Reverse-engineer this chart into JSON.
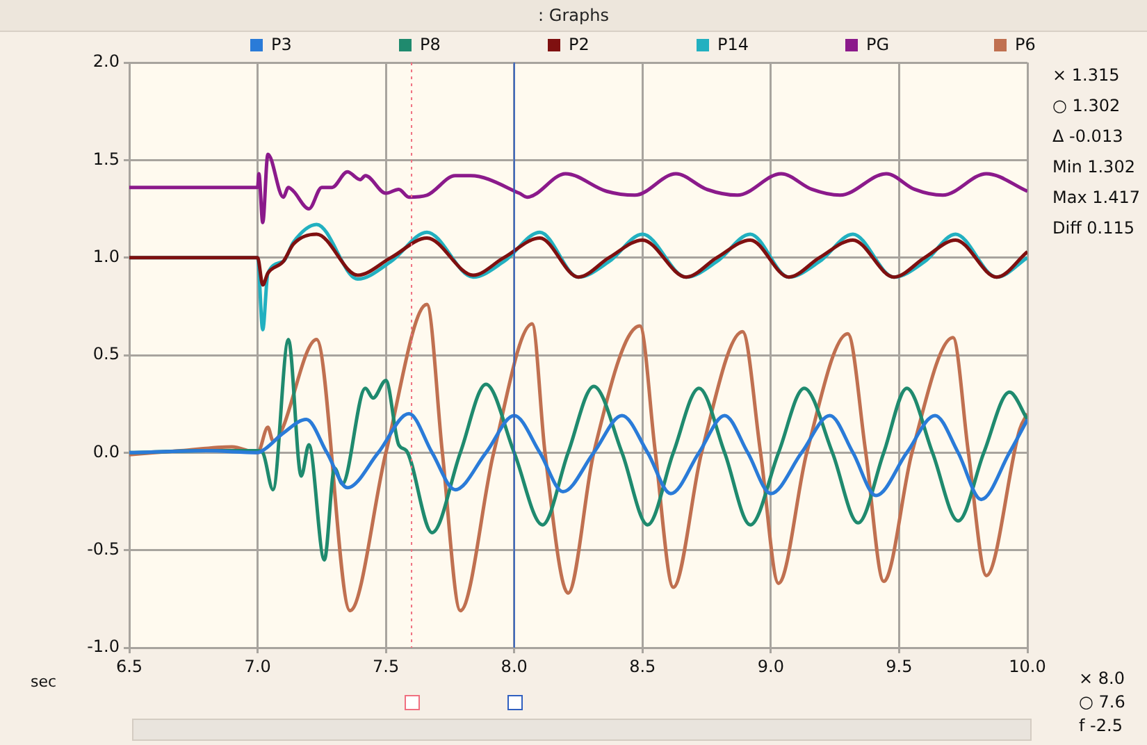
{
  "chart_data": {
    "type": "line",
    "title": ": Graphs",
    "xlabel": "sec",
    "xlim": [
      6.5,
      10.0
    ],
    "xticks": [
      {
        "value": 6.5,
        "label": "6.5"
      },
      {
        "value": 7,
        "label": "7.0"
      },
      {
        "value": 7.5,
        "label": "7.5"
      },
      {
        "value": 8,
        "label": "8.0"
      },
      {
        "value": 8.5,
        "label": "8.5"
      },
      {
        "value": 9,
        "label": "9.0"
      },
      {
        "value": 9.5,
        "label": "9.5"
      },
      {
        "value": 10,
        "label": "10.0"
      }
    ],
    "ylim": [
      -1.0,
      2.0
    ],
    "yticks": [
      {
        "value": -1,
        "label": "-1.0"
      },
      {
        "value": -0.5,
        "label": "-0.5"
      },
      {
        "value": 0,
        "label": "0.0"
      },
      {
        "value": 0.5,
        "label": "0.5"
      },
      {
        "value": 1,
        "label": "1.0"
      },
      {
        "value": 1.5,
        "label": "1.5"
      },
      {
        "value": 2,
        "label": "2.0"
      }
    ],
    "grid": true,
    "legend": "top",
    "marker": "none",
    "line_style": "solid",
    "series": [
      {
        "name": "P3",
        "color": "#2a7bd8",
        "x": [
          6.5,
          6.8,
          7.0,
          7.03,
          7.1,
          7.19,
          7.27,
          7.35,
          7.47,
          7.59,
          7.68,
          7.77,
          7.89,
          8.0,
          8.1,
          8.19,
          8.31,
          8.42,
          8.52,
          8.61,
          8.72,
          8.82,
          8.91,
          9.0,
          9.12,
          9.23,
          9.32,
          9.41,
          9.53,
          9.64,
          9.73,
          9.82,
          9.93,
          10.0
        ],
        "values": [
          0,
          0.01,
          0,
          0.02,
          0.1,
          0.17,
          0,
          -0.18,
          0,
          0.2,
          0,
          -0.19,
          0,
          0.19,
          0,
          -0.2,
          0,
          0.19,
          0,
          -0.21,
          0,
          0.19,
          0,
          -0.21,
          0,
          0.19,
          0,
          -0.22,
          0,
          0.19,
          0,
          -0.24,
          0,
          0.17
        ]
      },
      {
        "name": "P8",
        "color": "#1f8a6e",
        "x": [
          6.5,
          6.8,
          7.0,
          7.02,
          7.06,
          7.12,
          7.17,
          7.2,
          7.26,
          7.3,
          7.33,
          7.42,
          7.45,
          7.5,
          7.55,
          7.58,
          7.68,
          7.79,
          7.89,
          8.0,
          8.11,
          8.21,
          8.31,
          8.42,
          8.52,
          8.62,
          8.72,
          8.82,
          8.92,
          9.03,
          9.13,
          9.24,
          9.34,
          9.44,
          9.53,
          9.63,
          9.73,
          9.83,
          9.93,
          10.0
        ],
        "values": [
          0,
          0.01,
          0.01,
          0,
          -0.19,
          0.58,
          -0.12,
          0.04,
          -0.55,
          -0.08,
          -0.16,
          0.33,
          0.28,
          0.37,
          0.04,
          0.01,
          -0.41,
          0,
          0.35,
          0,
          -0.37,
          0,
          0.34,
          0,
          -0.37,
          0,
          0.33,
          0,
          -0.37,
          0,
          0.33,
          0,
          -0.36,
          0,
          0.33,
          0,
          -0.35,
          0,
          0.31,
          0.17
        ]
      },
      {
        "name": "P2",
        "color": "#7f1010",
        "x": [
          6.5,
          7.0,
          7.02,
          7.04,
          7.1,
          7.14,
          7.23,
          7.39,
          7.52,
          7.66,
          7.84,
          7.96,
          8.1,
          8.25,
          8.37,
          8.5,
          8.67,
          8.79,
          8.92,
          9.07,
          9.19,
          9.32,
          9.48,
          9.6,
          9.72,
          9.88,
          10.0
        ],
        "values": [
          1.0,
          1.0,
          0.86,
          0.92,
          0.98,
          1.07,
          1.12,
          0.91,
          1.0,
          1.1,
          0.91,
          1.0,
          1.1,
          0.9,
          1.0,
          1.09,
          0.9,
          1.0,
          1.09,
          0.9,
          1.0,
          1.09,
          0.9,
          1.0,
          1.09,
          0.9,
          1.03
        ]
      },
      {
        "name": "P14",
        "color": "#22b0c0",
        "x": [
          6.5,
          7.0,
          7.02,
          7.04,
          7.1,
          7.14,
          7.23,
          7.39,
          7.52,
          7.66,
          7.84,
          7.96,
          8.1,
          8.25,
          8.37,
          8.5,
          8.67,
          8.79,
          8.92,
          9.07,
          9.19,
          9.32,
          9.48,
          9.6,
          9.72,
          9.88,
          10.0
        ],
        "values": [
          1.0,
          1.0,
          0.63,
          0.92,
          0.98,
          1.08,
          1.17,
          0.89,
          0.98,
          1.13,
          0.9,
          0.98,
          1.13,
          0.9,
          0.98,
          1.12,
          0.9,
          0.98,
          1.12,
          0.9,
          0.98,
          1.12,
          0.9,
          0.98,
          1.12,
          0.9,
          1.0
        ]
      },
      {
        "name": "PG",
        "color": "#8b1a8b",
        "x": [
          6.5,
          7.0,
          7.005,
          7.02,
          7.04,
          7.1,
          7.12,
          7.14,
          7.2,
          7.25,
          7.29,
          7.35,
          7.4,
          7.42,
          7.5,
          7.55,
          7.59,
          7.66,
          7.77,
          7.83,
          8.02,
          8.05,
          8.2,
          8.36,
          8.47,
          8.63,
          8.75,
          8.87,
          9.04,
          9.16,
          9.27,
          9.45,
          9.56,
          9.67,
          9.84,
          10.0
        ],
        "values": [
          1.36,
          1.36,
          1.43,
          1.18,
          1.53,
          1.31,
          1.36,
          1.34,
          1.25,
          1.36,
          1.36,
          1.44,
          1.4,
          1.42,
          1.33,
          1.35,
          1.31,
          1.32,
          1.42,
          1.42,
          1.33,
          1.31,
          1.43,
          1.34,
          1.32,
          1.43,
          1.35,
          1.32,
          1.43,
          1.35,
          1.32,
          1.43,
          1.35,
          1.32,
          1.43,
          1.34
        ]
      },
      {
        "name": "P6",
        "color": "#c07050",
        "x": [
          6.5,
          6.7,
          6.9,
          7.0,
          7.04,
          7.06,
          7.23,
          7.36,
          7.5,
          7.66,
          7.72,
          7.79,
          7.92,
          8.07,
          8.12,
          8.21,
          8.31,
          8.49,
          8.55,
          8.62,
          8.73,
          8.89,
          8.96,
          9.03,
          9.14,
          9.3,
          9.37,
          9.44,
          9.55,
          9.71,
          9.77,
          9.84,
          9.97,
          10.0
        ],
        "values": [
          -0.01,
          0.01,
          0.03,
          0,
          0.13,
          0.06,
          0.58,
          -0.81,
          0,
          0.76,
          0,
          -0.81,
          0,
          0.66,
          0,
          -0.72,
          0,
          0.65,
          0,
          -0.69,
          0,
          0.62,
          0,
          -0.67,
          0,
          0.61,
          0,
          -0.66,
          0,
          0.59,
          0,
          -0.63,
          0.12,
          0.2
        ]
      }
    ],
    "ref_lines": [
      {
        "axis": "x",
        "value": 7.6,
        "color": "#f07080",
        "line_style": "dotted"
      },
      {
        "axis": "x",
        "value": 8.0,
        "color": "#3060c0",
        "line_style": "solid"
      }
    ],
    "annotations": [
      "× 1.315",
      "○ 1.302",
      "Δ -0.013",
      "Min 1.302",
      "Max 1.417",
      "Diff 0.115",
      "× 8.0",
      "○ 7.6",
      "f -2.5"
    ]
  }
}
